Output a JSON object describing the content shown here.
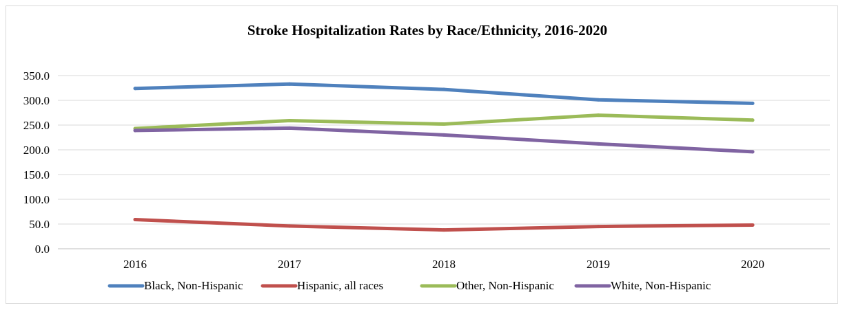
{
  "chart_data": {
    "type": "line",
    "title": "Stroke Hospitalization Rates by Race/Ethnicity, 2016-2020",
    "xlabel": "",
    "ylabel": "",
    "categories": [
      "2016",
      "2017",
      "2018",
      "2019",
      "2020"
    ],
    "ylim": [
      0,
      350
    ],
    "yticks": [
      0,
      50,
      100,
      150,
      200,
      250,
      300,
      350
    ],
    "ytick_labels": [
      "0.0",
      "50.0",
      "100.0",
      "150.0",
      "200.0",
      "250.0",
      "300.0",
      "350.0"
    ],
    "grid": true,
    "legend_position": "bottom",
    "series": [
      {
        "name": "Black, Non-Hispanic",
        "color": "#4f81bd",
        "values": [
          324,
          333,
          322,
          301,
          294
        ]
      },
      {
        "name": "Hispanic, all races",
        "color": "#c0504d",
        "values": [
          59,
          46,
          38,
          45,
          48
        ]
      },
      {
        "name": "Other, Non-Hispanic",
        "color": "#9bbb59",
        "values": [
          243,
          259,
          252,
          270,
          260
        ]
      },
      {
        "name": "White, Non-Hispanic",
        "color": "#8064a2",
        "values": [
          239,
          244,
          230,
          212,
          196
        ]
      }
    ]
  }
}
